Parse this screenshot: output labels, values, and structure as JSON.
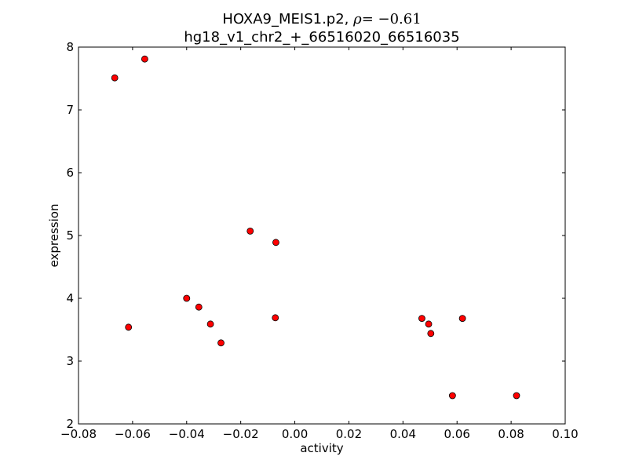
{
  "chart_data": {
    "type": "scatter",
    "title_line1_prefix": "HOXA9_MEIS1.p2, ",
    "title_line1_rho_symbol": "ρ",
    "title_line1_rho_value": "= −0.61",
    "title_line2": "hg18_v1_chr2_+_66516020_66516035",
    "xlabel": "activity",
    "ylabel": "expression",
    "xlim": [
      -0.08,
      0.1
    ],
    "ylim": [
      2,
      8
    ],
    "xticks": [
      -0.08,
      -0.06,
      -0.04,
      -0.02,
      0.0,
      0.02,
      0.04,
      0.06,
      0.08,
      0.1
    ],
    "xtick_labels": [
      "−0.08",
      "−0.06",
      "−0.04",
      "−0.02",
      "0.00",
      "0.02",
      "0.04",
      "0.06",
      "0.08",
      "0.10"
    ],
    "yticks": [
      2,
      3,
      4,
      5,
      6,
      7,
      8
    ],
    "ytick_labels": [
      "2",
      "3",
      "4",
      "5",
      "6",
      "7",
      "8"
    ],
    "grid": false,
    "marker_color": "#ff0000",
    "marker_edge_color": "#000000",
    "points": [
      {
        "x": -0.0666,
        "y": 7.51
      },
      {
        "x": -0.0555,
        "y": 7.81
      },
      {
        "x": -0.0615,
        "y": 3.54
      },
      {
        "x": -0.04,
        "y": 4.0
      },
      {
        "x": -0.0355,
        "y": 3.86
      },
      {
        "x": -0.0312,
        "y": 3.59
      },
      {
        "x": -0.0273,
        "y": 3.29
      },
      {
        "x": -0.0165,
        "y": 5.07
      },
      {
        "x": -0.007,
        "y": 4.89
      },
      {
        "x": -0.0072,
        "y": 3.69
      },
      {
        "x": 0.047,
        "y": 3.68
      },
      {
        "x": 0.0495,
        "y": 3.59
      },
      {
        "x": 0.0503,
        "y": 3.44
      },
      {
        "x": 0.062,
        "y": 3.68
      },
      {
        "x": 0.0583,
        "y": 2.45
      },
      {
        "x": 0.082,
        "y": 2.45
      }
    ]
  }
}
